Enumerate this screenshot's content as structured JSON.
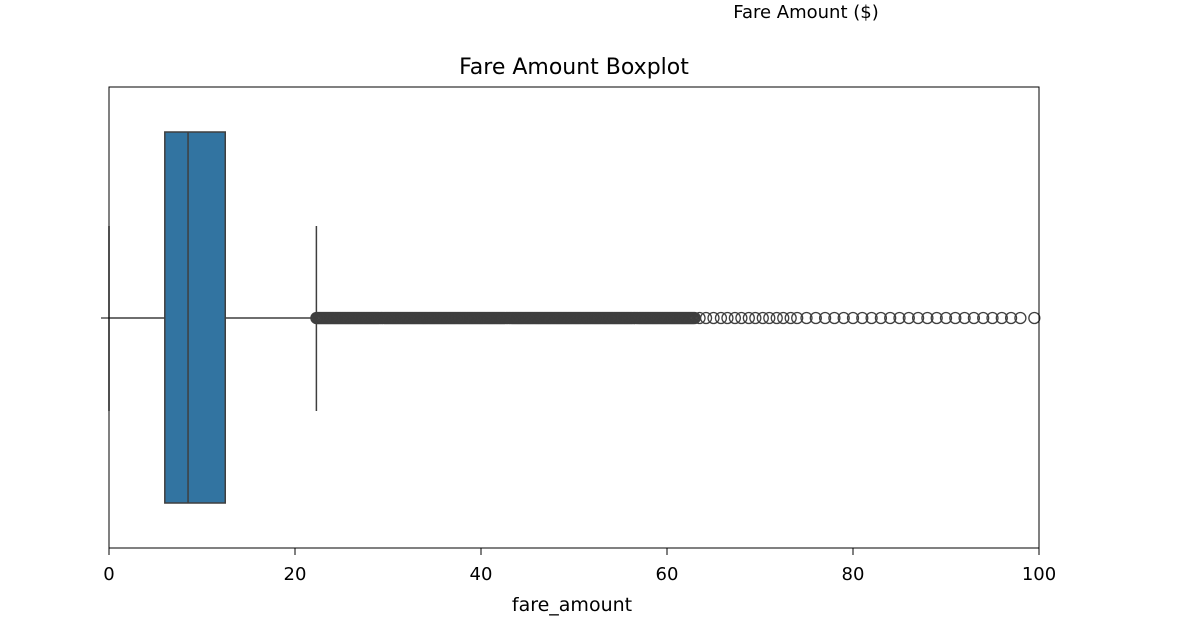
{
  "figure": {
    "suptitle": "Fare Amount ($)"
  },
  "chart_data": {
    "type": "boxplot",
    "title": "Fare Amount Boxplot",
    "xlabel": "fare_amount",
    "ylabel": "",
    "xlim": [
      0,
      100
    ],
    "xticks": [
      0,
      20,
      40,
      60,
      80,
      100
    ],
    "orientation": "horizontal",
    "grid": false,
    "box": {
      "whisker_low": 0,
      "q1": 6,
      "median": 8.5,
      "q3": 12.5,
      "whisker_high": 22.3
    },
    "outliers": {
      "dense_range": [
        22.3,
        63
      ],
      "sparse_values": [
        63.5,
        64.2,
        65,
        65.8,
        66.5,
        67.3,
        68,
        68.8,
        69.5,
        70.3,
        71,
        71.8,
        72.5,
        73.3,
        74,
        75,
        76,
        77,
        78,
        79,
        80,
        81,
        82,
        83,
        84,
        85,
        86,
        87,
        88,
        89,
        90,
        91,
        92,
        93,
        94,
        95,
        96,
        97,
        98,
        99.5
      ]
    },
    "colors": {
      "box_fill": "#3274a1",
      "line": "#3f3f3f",
      "axis": "#000000"
    }
  }
}
